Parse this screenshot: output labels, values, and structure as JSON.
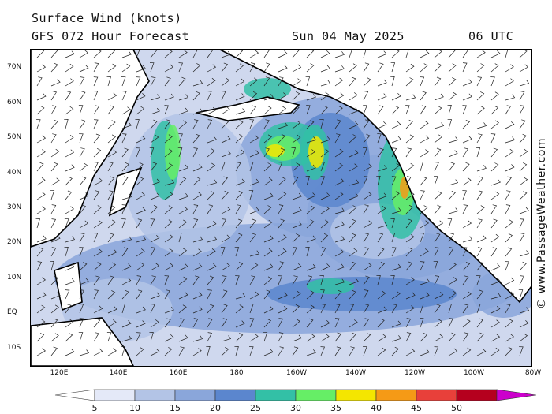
{
  "header": {
    "title": "Surface Wind (knots)",
    "subtitle": "GFS 072 Hour Forecast",
    "date": "Sun 04 May 2025",
    "time": "06 UTC"
  },
  "axes": {
    "lat_labels": [
      "70N",
      "60N",
      "50N",
      "40N",
      "30N",
      "20N",
      "10N",
      "EQ",
      "10S"
    ],
    "lon_labels": [
      "120E",
      "140E",
      "160E",
      "180",
      "160W",
      "140W",
      "120W",
      "100W",
      "80W"
    ]
  },
  "credit": "© www.PassageWeather.com",
  "legend": {
    "ticks": [
      "5",
      "10",
      "15",
      "20",
      "25",
      "30",
      "35",
      "40",
      "45",
      "50"
    ],
    "colors": [
      "#e4e9f8",
      "#b3c4e6",
      "#8aa6da",
      "#5b86ce",
      "#33c0a6",
      "#66ee66",
      "#f4e600",
      "#f59a16",
      "#e8403a",
      "#b5001e"
    ],
    "below_color": "#ffffff",
    "above_color": "#cc00cc"
  },
  "map": {
    "land_color": "#ffffff",
    "coast_color": "#000000",
    "barb_color": "#222222",
    "ocean_base_color": "#cfd8ee"
  }
}
